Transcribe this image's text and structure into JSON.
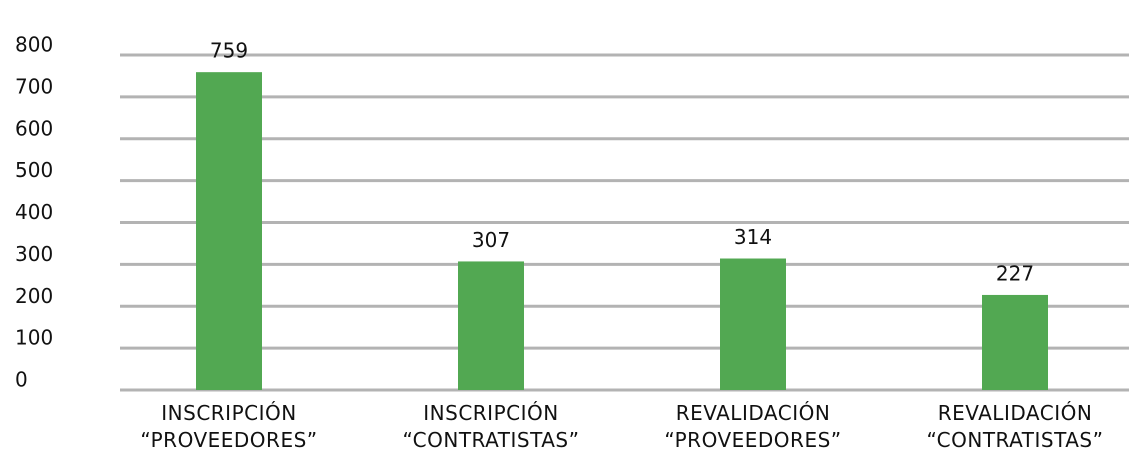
{
  "chart_data": {
    "type": "bar",
    "categories": [
      "INSCRIPCIÓN\n“PROVEEDORES”",
      "INSCRIPCIÓN\n“CONTRATISTAS”",
      "REVALIDACIÓN\n“PROVEEDORES”",
      "REVALIDACIÓN\n“CONTRATISTAS”"
    ],
    "values": [
      759,
      307,
      314,
      227
    ],
    "color": "#52a852",
    "ylim": [
      0,
      800
    ],
    "yticks": [
      0,
      100,
      200,
      300,
      400,
      500,
      600,
      700,
      800
    ],
    "grid": true
  }
}
